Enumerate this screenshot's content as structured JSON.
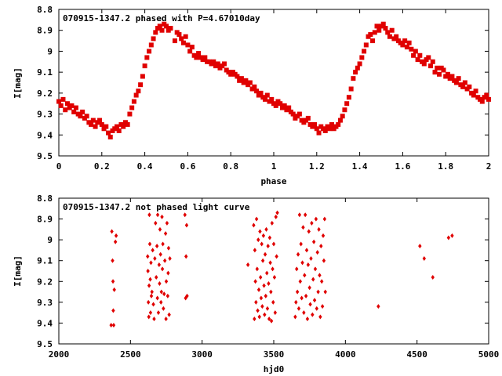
{
  "chart_data": [
    {
      "type": "scatter",
      "title": "070915-1347.2 phased with P=4.67010day",
      "xlabel": "phase",
      "ylabel": "I[mag]",
      "xlim": [
        0,
        2
      ],
      "ylim": [
        9.5,
        8.8
      ],
      "y_inverted": true,
      "xticks": [
        "0",
        "0.2",
        "0.4",
        "0.6",
        "0.8",
        "1",
        "1.2",
        "1.4",
        "1.6",
        "1.8",
        "2"
      ],
      "yticks": [
        "8.8",
        "8.9",
        "9",
        "9.1",
        "9.2",
        "9.3",
        "9.4",
        "9.5"
      ],
      "marker_color": "#e00000",
      "marker": "square",
      "grid": false,
      "points": [
        [
          0.0,
          9.24
        ],
        [
          0.01,
          9.26
        ],
        [
          0.02,
          9.23
        ],
        [
          0.03,
          9.28
        ],
        [
          0.04,
          9.25
        ],
        [
          0.05,
          9.27
        ],
        [
          0.06,
          9.26
        ],
        [
          0.07,
          9.29
        ],
        [
          0.08,
          9.27
        ],
        [
          0.09,
          9.3
        ],
        [
          0.1,
          9.31
        ],
        [
          0.11,
          9.29
        ],
        [
          0.12,
          9.32
        ],
        [
          0.13,
          9.31
        ],
        [
          0.14,
          9.34
        ],
        [
          0.15,
          9.35
        ],
        [
          0.16,
          9.33
        ],
        [
          0.17,
          9.36
        ],
        [
          0.18,
          9.34
        ],
        [
          0.19,
          9.33
        ],
        [
          0.2,
          9.35
        ],
        [
          0.21,
          9.37
        ],
        [
          0.22,
          9.36
        ],
        [
          0.23,
          9.39
        ],
        [
          0.24,
          9.41
        ],
        [
          0.25,
          9.38
        ],
        [
          0.26,
          9.37
        ],
        [
          0.27,
          9.36
        ],
        [
          0.28,
          9.38
        ],
        [
          0.29,
          9.35
        ],
        [
          0.3,
          9.36
        ],
        [
          0.31,
          9.34
        ],
        [
          0.32,
          9.35
        ],
        [
          0.33,
          9.3
        ],
        [
          0.34,
          9.27
        ],
        [
          0.35,
          9.24
        ],
        [
          0.36,
          9.21
        ],
        [
          0.37,
          9.19
        ],
        [
          0.38,
          9.16
        ],
        [
          0.39,
          9.12
        ],
        [
          0.4,
          9.07
        ],
        [
          0.41,
          9.03
        ],
        [
          0.42,
          9.0
        ],
        [
          0.43,
          8.97
        ],
        [
          0.44,
          8.94
        ],
        [
          0.45,
          8.91
        ],
        [
          0.46,
          8.89
        ],
        [
          0.47,
          8.88
        ],
        [
          0.48,
          8.9
        ],
        [
          0.49,
          8.87
        ],
        [
          0.5,
          8.88
        ],
        [
          0.51,
          8.9
        ],
        [
          0.52,
          8.89
        ],
        [
          0.54,
          8.95
        ],
        [
          0.55,
          8.91
        ],
        [
          0.56,
          8.92
        ],
        [
          0.57,
          8.94
        ],
        [
          0.58,
          8.96
        ],
        [
          0.59,
          8.93
        ],
        [
          0.6,
          8.97
        ],
        [
          0.61,
          9.0
        ],
        [
          0.62,
          8.98
        ],
        [
          0.63,
          9.02
        ],
        [
          0.64,
          9.03
        ],
        [
          0.65,
          9.01
        ],
        [
          0.66,
          9.03
        ],
        [
          0.67,
          9.04
        ],
        [
          0.68,
          9.03
        ],
        [
          0.69,
          9.05
        ],
        [
          0.7,
          9.05
        ],
        [
          0.71,
          9.06
        ],
        [
          0.72,
          9.05
        ],
        [
          0.73,
          9.07
        ],
        [
          0.74,
          9.06
        ],
        [
          0.75,
          9.08
        ],
        [
          0.76,
          9.07
        ],
        [
          0.77,
          9.06
        ],
        [
          0.78,
          9.09
        ],
        [
          0.79,
          9.1
        ],
        [
          0.8,
          9.11
        ],
        [
          0.81,
          9.1
        ],
        [
          0.82,
          9.11
        ],
        [
          0.83,
          9.12
        ],
        [
          0.84,
          9.14
        ],
        [
          0.85,
          9.13
        ],
        [
          0.86,
          9.15
        ],
        [
          0.87,
          9.14
        ],
        [
          0.88,
          9.16
        ],
        [
          0.89,
          9.15
        ],
        [
          0.9,
          9.18
        ],
        [
          0.91,
          9.17
        ],
        [
          0.92,
          9.19
        ],
        [
          0.93,
          9.21
        ],
        [
          0.94,
          9.2
        ],
        [
          0.95,
          9.22
        ],
        [
          0.96,
          9.23
        ],
        [
          0.97,
          9.21
        ],
        [
          0.98,
          9.24
        ],
        [
          0.99,
          9.23
        ],
        [
          1.0,
          9.25
        ],
        [
          1.01,
          9.26
        ],
        [
          1.02,
          9.24
        ],
        [
          1.03,
          9.25
        ],
        [
          1.04,
          9.27
        ],
        [
          1.05,
          9.26
        ],
        [
          1.06,
          9.28
        ],
        [
          1.07,
          9.27
        ],
        [
          1.08,
          9.29
        ],
        [
          1.09,
          9.3
        ],
        [
          1.1,
          9.32
        ],
        [
          1.11,
          9.31
        ],
        [
          1.12,
          9.3
        ],
        [
          1.13,
          9.33
        ],
        [
          1.14,
          9.34
        ],
        [
          1.15,
          9.33
        ],
        [
          1.16,
          9.32
        ],
        [
          1.17,
          9.35
        ],
        [
          1.18,
          9.36
        ],
        [
          1.19,
          9.35
        ],
        [
          1.2,
          9.37
        ],
        [
          1.21,
          9.39
        ],
        [
          1.22,
          9.36
        ],
        [
          1.23,
          9.37
        ],
        [
          1.24,
          9.38
        ],
        [
          1.25,
          9.36
        ],
        [
          1.26,
          9.37
        ],
        [
          1.27,
          9.35
        ],
        [
          1.28,
          9.37
        ],
        [
          1.29,
          9.36
        ],
        [
          1.3,
          9.35
        ],
        [
          1.31,
          9.33
        ],
        [
          1.32,
          9.31
        ],
        [
          1.33,
          9.28
        ],
        [
          1.34,
          9.25
        ],
        [
          1.35,
          9.22
        ],
        [
          1.36,
          9.18
        ],
        [
          1.37,
          9.13
        ],
        [
          1.38,
          9.1
        ],
        [
          1.39,
          9.08
        ],
        [
          1.4,
          9.06
        ],
        [
          1.41,
          9.03
        ],
        [
          1.42,
          9.0
        ],
        [
          1.43,
          8.97
        ],
        [
          1.44,
          8.93
        ],
        [
          1.45,
          8.92
        ],
        [
          1.46,
          8.95
        ],
        [
          1.47,
          8.91
        ],
        [
          1.48,
          8.88
        ],
        [
          1.49,
          8.9
        ],
        [
          1.5,
          8.88
        ],
        [
          1.51,
          8.87
        ],
        [
          1.52,
          8.89
        ],
        [
          1.53,
          8.91
        ],
        [
          1.54,
          8.93
        ],
        [
          1.55,
          8.9
        ],
        [
          1.56,
          8.94
        ],
        [
          1.57,
          8.93
        ],
        [
          1.58,
          8.95
        ],
        [
          1.59,
          8.96
        ],
        [
          1.6,
          8.97
        ],
        [
          1.61,
          8.95
        ],
        [
          1.62,
          8.98
        ],
        [
          1.63,
          8.96
        ],
        [
          1.64,
          8.99
        ],
        [
          1.65,
          9.02
        ],
        [
          1.66,
          9.0
        ],
        [
          1.67,
          9.04
        ],
        [
          1.68,
          9.02
        ],
        [
          1.69,
          9.05
        ],
        [
          1.7,
          9.06
        ],
        [
          1.71,
          9.04
        ],
        [
          1.72,
          9.03
        ],
        [
          1.73,
          9.07
        ],
        [
          1.74,
          9.05
        ],
        [
          1.75,
          9.1
        ],
        [
          1.76,
          9.08
        ],
        [
          1.77,
          9.11
        ],
        [
          1.78,
          9.08
        ],
        [
          1.79,
          9.09
        ],
        [
          1.8,
          9.12
        ],
        [
          1.81,
          9.11
        ],
        [
          1.82,
          9.13
        ],
        [
          1.83,
          9.12
        ],
        [
          1.84,
          9.14
        ],
        [
          1.85,
          9.15
        ],
        [
          1.86,
          9.13
        ],
        [
          1.87,
          9.16
        ],
        [
          1.88,
          9.17
        ],
        [
          1.89,
          9.15
        ],
        [
          1.9,
          9.18
        ],
        [
          1.91,
          9.17
        ],
        [
          1.92,
          9.2
        ],
        [
          1.93,
          9.21
        ],
        [
          1.94,
          9.19
        ],
        [
          1.95,
          9.22
        ],
        [
          1.96,
          9.23
        ],
        [
          1.97,
          9.24
        ],
        [
          1.98,
          9.22
        ],
        [
          1.99,
          9.21
        ],
        [
          2.0,
          9.23
        ]
      ]
    },
    {
      "type": "scatter",
      "title": "070915-1347.2 not phased light curve",
      "xlabel": "hjd0",
      "ylabel": "I[mag]",
      "xlim": [
        2000,
        5000
      ],
      "ylim": [
        9.5,
        8.8
      ],
      "y_inverted": true,
      "xticks": [
        "2000",
        "2500",
        "3000",
        "3500",
        "4000",
        "4500",
        "5000"
      ],
      "yticks": [
        "8.8",
        "8.9",
        "9",
        "9.1",
        "9.2",
        "9.3",
        "9.4",
        "9.5"
      ],
      "marker_color": "#e00000",
      "marker": "diamond",
      "grid": false,
      "points": [
        [
          2365,
          9.41
        ],
        [
          2370,
          8.96
        ],
        [
          2375,
          9.1
        ],
        [
          2378,
          9.2
        ],
        [
          2380,
          9.34
        ],
        [
          2383,
          9.41
        ],
        [
          2387,
          9.24
        ],
        [
          2395,
          9.01
        ],
        [
          2400,
          8.98
        ],
        [
          2620,
          9.08
        ],
        [
          2622,
          9.15
        ],
        [
          2625,
          9.3
        ],
        [
          2628,
          9.37
        ],
        [
          2630,
          9.22
        ],
        [
          2632,
          8.88
        ],
        [
          2635,
          9.02
        ],
        [
          2638,
          9.19
        ],
        [
          2640,
          9.35
        ],
        [
          2643,
          9.11
        ],
        [
          2646,
          9.27
        ],
        [
          2650,
          9.25
        ],
        [
          2655,
          9.05
        ],
        [
          2660,
          9.31
        ],
        [
          2665,
          9.38
        ],
        [
          2670,
          9.09
        ],
        [
          2675,
          8.92
        ],
        [
          2680,
          9.18
        ],
        [
          2685,
          9.03
        ],
        [
          2688,
          9.28
        ],
        [
          2690,
          8.88
        ],
        [
          2695,
          9.35
        ],
        [
          2700,
          9.12
        ],
        [
          2703,
          9.21
        ],
        [
          2706,
          8.95
        ],
        [
          2710,
          9.07
        ],
        [
          2713,
          9.3
        ],
        [
          2716,
          9.25
        ],
        [
          2720,
          8.89
        ],
        [
          2723,
          9.14
        ],
        [
          2726,
          9.02
        ],
        [
          2730,
          9.33
        ],
        [
          2735,
          9.26
        ],
        [
          2740,
          9.1
        ],
        [
          2745,
          8.97
        ],
        [
          2748,
          9.38
        ],
        [
          2750,
          9.2
        ],
        [
          2755,
          8.92
        ],
        [
          2760,
          9.27
        ],
        [
          2763,
          9.16
        ],
        [
          2766,
          9.04
        ],
        [
          2770,
          9.36
        ],
        [
          2775,
          9.09
        ],
        [
          2880,
          8.88
        ],
        [
          2885,
          9.28
        ],
        [
          2888,
          9.08
        ],
        [
          2892,
          8.93
        ],
        [
          2895,
          9.27
        ],
        [
          3320,
          9.12
        ],
        [
          3360,
          8.93
        ],
        [
          3365,
          9.38
        ],
        [
          3368,
          9.05
        ],
        [
          3372,
          9.2
        ],
        [
          3376,
          9.3
        ],
        [
          3380,
          8.9
        ],
        [
          3384,
          9.14
        ],
        [
          3388,
          9.34
        ],
        [
          3392,
          9.0
        ],
        [
          3396,
          9.24
        ],
        [
          3400,
          9.37
        ],
        [
          3404,
          8.96
        ],
        [
          3408,
          9.18
        ],
        [
          3412,
          9.28
        ],
        [
          3416,
          9.02
        ],
        [
          3420,
          9.32
        ],
        [
          3424,
          9.1
        ],
        [
          3428,
          8.98
        ],
        [
          3432,
          9.22
        ],
        [
          3436,
          9.36
        ],
        [
          3440,
          9.07
        ],
        [
          3444,
          9.27
        ],
        [
          3448,
          8.95
        ],
        [
          3452,
          9.16
        ],
        [
          3456,
          9.33
        ],
        [
          3460,
          9.03
        ],
        [
          3464,
          9.21
        ],
        [
          3468,
          9.38
        ],
        [
          3472,
          8.99
        ],
        [
          3476,
          9.11
        ],
        [
          3480,
          9.25
        ],
        [
          3484,
          9.39
        ],
        [
          3488,
          8.92
        ],
        [
          3492,
          9.14
        ],
        [
          3496,
          9.3
        ],
        [
          3500,
          9.02
        ],
        [
          3505,
          9.18
        ],
        [
          3510,
          9.35
        ],
        [
          3515,
          8.89
        ],
        [
          3520,
          9.08
        ],
        [
          3525,
          8.87
        ],
        [
          3650,
          9.37
        ],
        [
          3655,
          9.3
        ],
        [
          3660,
          9.14
        ],
        [
          3665,
          9.25
        ],
        [
          3670,
          9.07
        ],
        [
          3675,
          9.33
        ],
        [
          3680,
          8.88
        ],
        [
          3685,
          9.2
        ],
        [
          3690,
          9.02
        ],
        [
          3695,
          9.28
        ],
        [
          3700,
          9.11
        ],
        [
          3705,
          8.94
        ],
        [
          3710,
          9.35
        ],
        [
          3715,
          9.17
        ],
        [
          3720,
          8.88
        ],
        [
          3725,
          9.27
        ],
        [
          3730,
          9.05
        ],
        [
          3735,
          9.38
        ],
        [
          3740,
          9.12
        ],
        [
          3745,
          8.96
        ],
        [
          3750,
          9.23
        ],
        [
          3755,
          9.31
        ],
        [
          3760,
          9.09
        ],
        [
          3765,
          8.92
        ],
        [
          3770,
          9.36
        ],
        [
          3775,
          9.19
        ],
        [
          3780,
          9.01
        ],
        [
          3785,
          9.29
        ],
        [
          3790,
          9.14
        ],
        [
          3795,
          8.9
        ],
        [
          3800,
          9.33
        ],
        [
          3805,
          9.06
        ],
        [
          3810,
          9.25
        ],
        [
          3815,
          8.95
        ],
        [
          3820,
          9.17
        ],
        [
          3825,
          9.37
        ],
        [
          3830,
          9.03
        ],
        [
          3835,
          9.2
        ],
        [
          3840,
          9.32
        ],
        [
          3845,
          8.98
        ],
        [
          3850,
          9.1
        ],
        [
          3855,
          8.9
        ],
        [
          3860,
          9.25
        ],
        [
          4230,
          9.32
        ],
        [
          4520,
          9.03
        ],
        [
          4550,
          9.09
        ],
        [
          4610,
          9.18
        ],
        [
          4720,
          8.99
        ],
        [
          4745,
          8.98
        ]
      ]
    }
  ]
}
